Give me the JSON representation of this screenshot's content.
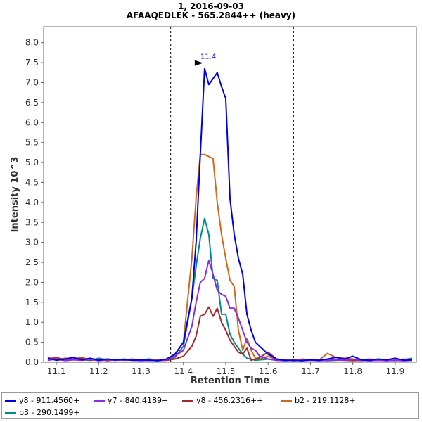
{
  "chart_data": {
    "type": "line",
    "title": "1, 2016-09-03",
    "subtitle": "AFAAQEDLEK - 565.2844++ (heavy)",
    "xlabel": "Retention Time",
    "ylabel": "Intensity  10^3",
    "xlim": [
      11.07,
      11.95
    ],
    "ylim": [
      0,
      8.4
    ],
    "x_ticks": [
      "11.1",
      "11.2",
      "11.3",
      "11.4",
      "11.5",
      "11.6",
      "11.7",
      "11.8",
      "11.9"
    ],
    "y_ticks": [
      "0.0",
      "0.5",
      "1.0",
      "1.5",
      "2.0",
      "2.5",
      "3.0",
      "3.5",
      "4.0",
      "4.5",
      "5.0",
      "5.5",
      "6.0",
      "6.5",
      "7.0",
      "7.5",
      "8.0"
    ],
    "boundaries": [
      11.37,
      11.66
    ],
    "peak_annotation": {
      "x": 11.45,
      "y": 7.35,
      "label": "11.4"
    },
    "grid": false,
    "legend_position": "bottom",
    "series": [
      {
        "name": "y8 - 911.4560+",
        "color": "#0000e0",
        "width": 2,
        "points": [
          [
            11.08,
            0.1
          ],
          [
            11.1,
            0.05
          ],
          [
            11.12,
            0.08
          ],
          [
            11.14,
            0.12
          ],
          [
            11.16,
            0.06
          ],
          [
            11.18,
            0.1
          ],
          [
            11.2,
            0.05
          ],
          [
            11.22,
            0.08
          ],
          [
            11.24,
            0.06
          ],
          [
            11.26,
            0.07
          ],
          [
            11.28,
            0.05
          ],
          [
            11.3,
            0.06
          ],
          [
            11.32,
            0.05
          ],
          [
            11.34,
            0.04
          ],
          [
            11.36,
            0.08
          ],
          [
            11.38,
            0.2
          ],
          [
            11.4,
            0.5
          ],
          [
            11.42,
            1.6
          ],
          [
            11.43,
            3.0
          ],
          [
            11.44,
            5.2
          ],
          [
            11.45,
            7.35
          ],
          [
            11.46,
            6.95
          ],
          [
            11.47,
            7.1
          ],
          [
            11.48,
            7.25
          ],
          [
            11.49,
            6.9
          ],
          [
            11.5,
            6.6
          ],
          [
            11.51,
            4.1
          ],
          [
            11.52,
            3.2
          ],
          [
            11.53,
            2.6
          ],
          [
            11.54,
            2.2
          ],
          [
            11.55,
            1.2
          ],
          [
            11.56,
            0.8
          ],
          [
            11.57,
            0.5
          ],
          [
            11.58,
            0.4
          ],
          [
            11.6,
            0.2
          ],
          [
            11.62,
            0.08
          ],
          [
            11.64,
            0.05
          ],
          [
            11.66,
            0.05
          ],
          [
            11.68,
            0.04
          ],
          [
            11.7,
            0.06
          ],
          [
            11.72,
            0.05
          ],
          [
            11.74,
            0.08
          ],
          [
            11.76,
            0.12
          ],
          [
            11.78,
            0.08
          ],
          [
            11.8,
            0.15
          ],
          [
            11.82,
            0.06
          ],
          [
            11.84,
            0.05
          ],
          [
            11.86,
            0.08
          ],
          [
            11.88,
            0.06
          ],
          [
            11.9,
            0.1
          ],
          [
            11.92,
            0.05
          ],
          [
            11.94,
            0.06
          ]
        ]
      },
      {
        "name": "y7 - 840.4189+",
        "color": "#8a2be2",
        "width": 2,
        "points": [
          [
            11.08,
            0.05
          ],
          [
            11.1,
            0.08
          ],
          [
            11.12,
            0.04
          ],
          [
            11.14,
            0.06
          ],
          [
            11.16,
            0.05
          ],
          [
            11.18,
            0.07
          ],
          [
            11.2,
            0.04
          ],
          [
            11.22,
            0.06
          ],
          [
            11.24,
            0.05
          ],
          [
            11.26,
            0.06
          ],
          [
            11.28,
            0.05
          ],
          [
            11.3,
            0.04
          ],
          [
            11.32,
            0.05
          ],
          [
            11.34,
            0.04
          ],
          [
            11.36,
            0.06
          ],
          [
            11.38,
            0.15
          ],
          [
            11.4,
            0.3
          ],
          [
            11.42,
            0.9
          ],
          [
            11.43,
            1.5
          ],
          [
            11.44,
            2.0
          ],
          [
            11.45,
            2.1
          ],
          [
            11.46,
            2.55
          ],
          [
            11.47,
            2.2
          ],
          [
            11.48,
            1.8
          ],
          [
            11.49,
            1.7
          ],
          [
            11.5,
            1.65
          ],
          [
            11.51,
            1.35
          ],
          [
            11.52,
            1.35
          ],
          [
            11.53,
            1.1
          ],
          [
            11.54,
            0.8
          ],
          [
            11.55,
            0.5
          ],
          [
            11.56,
            0.35
          ],
          [
            11.57,
            0.3
          ],
          [
            11.58,
            0.15
          ],
          [
            11.6,
            0.08
          ],
          [
            11.62,
            0.05
          ],
          [
            11.64,
            0.04
          ],
          [
            11.66,
            0.05
          ],
          [
            11.68,
            0.04
          ],
          [
            11.7,
            0.05
          ],
          [
            11.72,
            0.04
          ],
          [
            11.74,
            0.05
          ],
          [
            11.76,
            0.06
          ],
          [
            11.78,
            0.05
          ],
          [
            11.8,
            0.07
          ],
          [
            11.82,
            0.05
          ],
          [
            11.84,
            0.04
          ],
          [
            11.86,
            0.05
          ],
          [
            11.88,
            0.04
          ],
          [
            11.9,
            0.05
          ],
          [
            11.92,
            0.04
          ],
          [
            11.94,
            0.05
          ]
        ]
      },
      {
        "name": "y8 - 456.2316++",
        "color": "#a52a2a",
        "width": 2,
        "points": [
          [
            11.08,
            0.08
          ],
          [
            11.1,
            0.12
          ],
          [
            11.12,
            0.06
          ],
          [
            11.14,
            0.08
          ],
          [
            11.16,
            0.1
          ],
          [
            11.18,
            0.05
          ],
          [
            11.2,
            0.07
          ],
          [
            11.22,
            0.04
          ],
          [
            11.24,
            0.06
          ],
          [
            11.26,
            0.05
          ],
          [
            11.28,
            0.06
          ],
          [
            11.3,
            0.04
          ],
          [
            11.32,
            0.05
          ],
          [
            11.34,
            0.04
          ],
          [
            11.36,
            0.05
          ],
          [
            11.38,
            0.08
          ],
          [
            11.4,
            0.15
          ],
          [
            11.42,
            0.4
          ],
          [
            11.43,
            0.65
          ],
          [
            11.44,
            1.15
          ],
          [
            11.45,
            1.2
          ],
          [
            11.46,
            1.38
          ],
          [
            11.47,
            1.15
          ],
          [
            11.48,
            1.35
          ],
          [
            11.49,
            1.0
          ],
          [
            11.5,
            0.8
          ],
          [
            11.51,
            0.55
          ],
          [
            11.52,
            0.4
          ],
          [
            11.53,
            0.25
          ],
          [
            11.54,
            0.2
          ],
          [
            11.55,
            0.35
          ],
          [
            11.56,
            0.05
          ],
          [
            11.57,
            0.08
          ],
          [
            11.58,
            0.12
          ],
          [
            11.6,
            0.25
          ],
          [
            11.62,
            0.08
          ],
          [
            11.64,
            0.05
          ],
          [
            11.66,
            0.04
          ],
          [
            11.68,
            0.05
          ],
          [
            11.7,
            0.06
          ],
          [
            11.72,
            0.04
          ],
          [
            11.74,
            0.05
          ],
          [
            11.76,
            0.06
          ],
          [
            11.78,
            0.05
          ],
          [
            11.8,
            0.04
          ],
          [
            11.82,
            0.05
          ],
          [
            11.84,
            0.04
          ],
          [
            11.86,
            0.05
          ],
          [
            11.88,
            0.04
          ],
          [
            11.9,
            0.05
          ],
          [
            11.92,
            0.04
          ],
          [
            11.94,
            0.05
          ]
        ]
      },
      {
        "name": "b2 - 219.1128+",
        "color": "#d2691e",
        "width": 2,
        "points": [
          [
            11.08,
            0.12
          ],
          [
            11.1,
            0.06
          ],
          [
            11.12,
            0.1
          ],
          [
            11.14,
            0.08
          ],
          [
            11.16,
            0.12
          ],
          [
            11.18,
            0.06
          ],
          [
            11.2,
            0.08
          ],
          [
            11.22,
            0.05
          ],
          [
            11.24,
            0.07
          ],
          [
            11.26,
            0.06
          ],
          [
            11.28,
            0.08
          ],
          [
            11.3,
            0.05
          ],
          [
            11.32,
            0.06
          ],
          [
            11.34,
            0.05
          ],
          [
            11.36,
            0.07
          ],
          [
            11.38,
            0.18
          ],
          [
            11.4,
            0.5
          ],
          [
            11.42,
            2.6
          ],
          [
            11.43,
            4.1
          ],
          [
            11.44,
            5.2
          ],
          [
            11.45,
            5.2
          ],
          [
            11.46,
            5.15
          ],
          [
            11.47,
            5.1
          ],
          [
            11.48,
            4.0
          ],
          [
            11.49,
            3.2
          ],
          [
            11.5,
            2.6
          ],
          [
            11.51,
            2.05
          ],
          [
            11.52,
            1.9
          ],
          [
            11.53,
            0.8
          ],
          [
            11.54,
            0.3
          ],
          [
            11.55,
            0.6
          ],
          [
            11.56,
            0.3
          ],
          [
            11.57,
            0.1
          ],
          [
            11.58,
            0.08
          ],
          [
            11.6,
            0.15
          ],
          [
            11.62,
            0.06
          ],
          [
            11.64,
            0.05
          ],
          [
            11.66,
            0.05
          ],
          [
            11.68,
            0.08
          ],
          [
            11.7,
            0.06
          ],
          [
            11.72,
            0.05
          ],
          [
            11.74,
            0.22
          ],
          [
            11.76,
            0.12
          ],
          [
            11.78,
            0.1
          ],
          [
            11.8,
            0.08
          ],
          [
            11.82,
            0.06
          ],
          [
            11.84,
            0.08
          ],
          [
            11.86,
            0.05
          ],
          [
            11.88,
            0.06
          ],
          [
            11.9,
            0.05
          ],
          [
            11.92,
            0.08
          ],
          [
            11.94,
            0.06
          ]
        ]
      },
      {
        "name": "b3 - 290.1499+",
        "color": "#008b8b",
        "width": 2,
        "points": [
          [
            11.08,
            0.06
          ],
          [
            11.1,
            0.08
          ],
          [
            11.12,
            0.05
          ],
          [
            11.14,
            0.07
          ],
          [
            11.16,
            0.06
          ],
          [
            11.18,
            0.05
          ],
          [
            11.2,
            0.1
          ],
          [
            11.22,
            0.06
          ],
          [
            11.24,
            0.05
          ],
          [
            11.26,
            0.08
          ],
          [
            11.28,
            0.05
          ],
          [
            11.3,
            0.06
          ],
          [
            11.32,
            0.08
          ],
          [
            11.34,
            0.05
          ],
          [
            11.36,
            0.06
          ],
          [
            11.38,
            0.12
          ],
          [
            11.4,
            0.4
          ],
          [
            11.42,
            1.6
          ],
          [
            11.43,
            2.4
          ],
          [
            11.44,
            3.1
          ],
          [
            11.45,
            3.6
          ],
          [
            11.46,
            3.2
          ],
          [
            11.47,
            2.1
          ],
          [
            11.48,
            2.05
          ],
          [
            11.49,
            1.2
          ],
          [
            11.5,
            1.2
          ],
          [
            11.51,
            0.7
          ],
          [
            11.52,
            0.5
          ],
          [
            11.53,
            0.35
          ],
          [
            11.54,
            0.2
          ],
          [
            11.55,
            0.1
          ],
          [
            11.56,
            0.08
          ],
          [
            11.57,
            0.05
          ],
          [
            11.58,
            0.06
          ],
          [
            11.6,
            0.08
          ],
          [
            11.62,
            0.05
          ],
          [
            11.64,
            0.04
          ],
          [
            11.66,
            0.05
          ],
          [
            11.68,
            0.04
          ],
          [
            11.7,
            0.06
          ],
          [
            11.72,
            0.05
          ],
          [
            11.74,
            0.04
          ],
          [
            11.76,
            0.05
          ],
          [
            11.78,
            0.06
          ],
          [
            11.8,
            0.05
          ],
          [
            11.82,
            0.04
          ],
          [
            11.84,
            0.05
          ],
          [
            11.86,
            0.06
          ],
          [
            11.88,
            0.05
          ],
          [
            11.9,
            0.04
          ],
          [
            11.92,
            0.06
          ],
          [
            11.94,
            0.1
          ]
        ]
      }
    ]
  }
}
